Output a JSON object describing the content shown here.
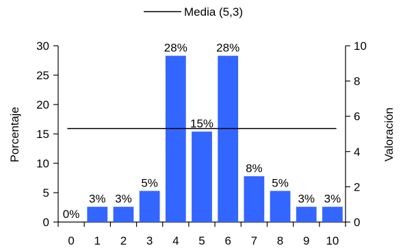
{
  "chart_data": {
    "type": "bar",
    "categories": [
      "0",
      "1",
      "2",
      "3",
      "4",
      "5",
      "6",
      "7",
      "8",
      "9",
      "10"
    ],
    "values": [
      0,
      2.6,
      2.6,
      5.3,
      28.3,
      15.4,
      28.3,
      7.8,
      5.3,
      2.6,
      2.6
    ],
    "data_labels": [
      "0%",
      "3%",
      "3%",
      "5%",
      "28%",
      "15%",
      "28%",
      "8%",
      "5%",
      "3%",
      "3%"
    ],
    "ylabel": "Porcentaje",
    "ylim": [
      0,
      30
    ],
    "yticks": [
      "0",
      "5",
      "10",
      "15",
      "20",
      "25",
      "30"
    ],
    "y2label": "Valoración",
    "y2lim": [
      0,
      10
    ],
    "y2ticks": [
      "0",
      "2",
      "4",
      "6",
      "8",
      "10"
    ],
    "mean_line": {
      "label": "Media (5,3)",
      "value": 5.3
    },
    "legend_position": "top-center",
    "grid": false,
    "colors": {
      "bar": "#3366ff",
      "line": "#000000",
      "axis": "#000000"
    }
  }
}
